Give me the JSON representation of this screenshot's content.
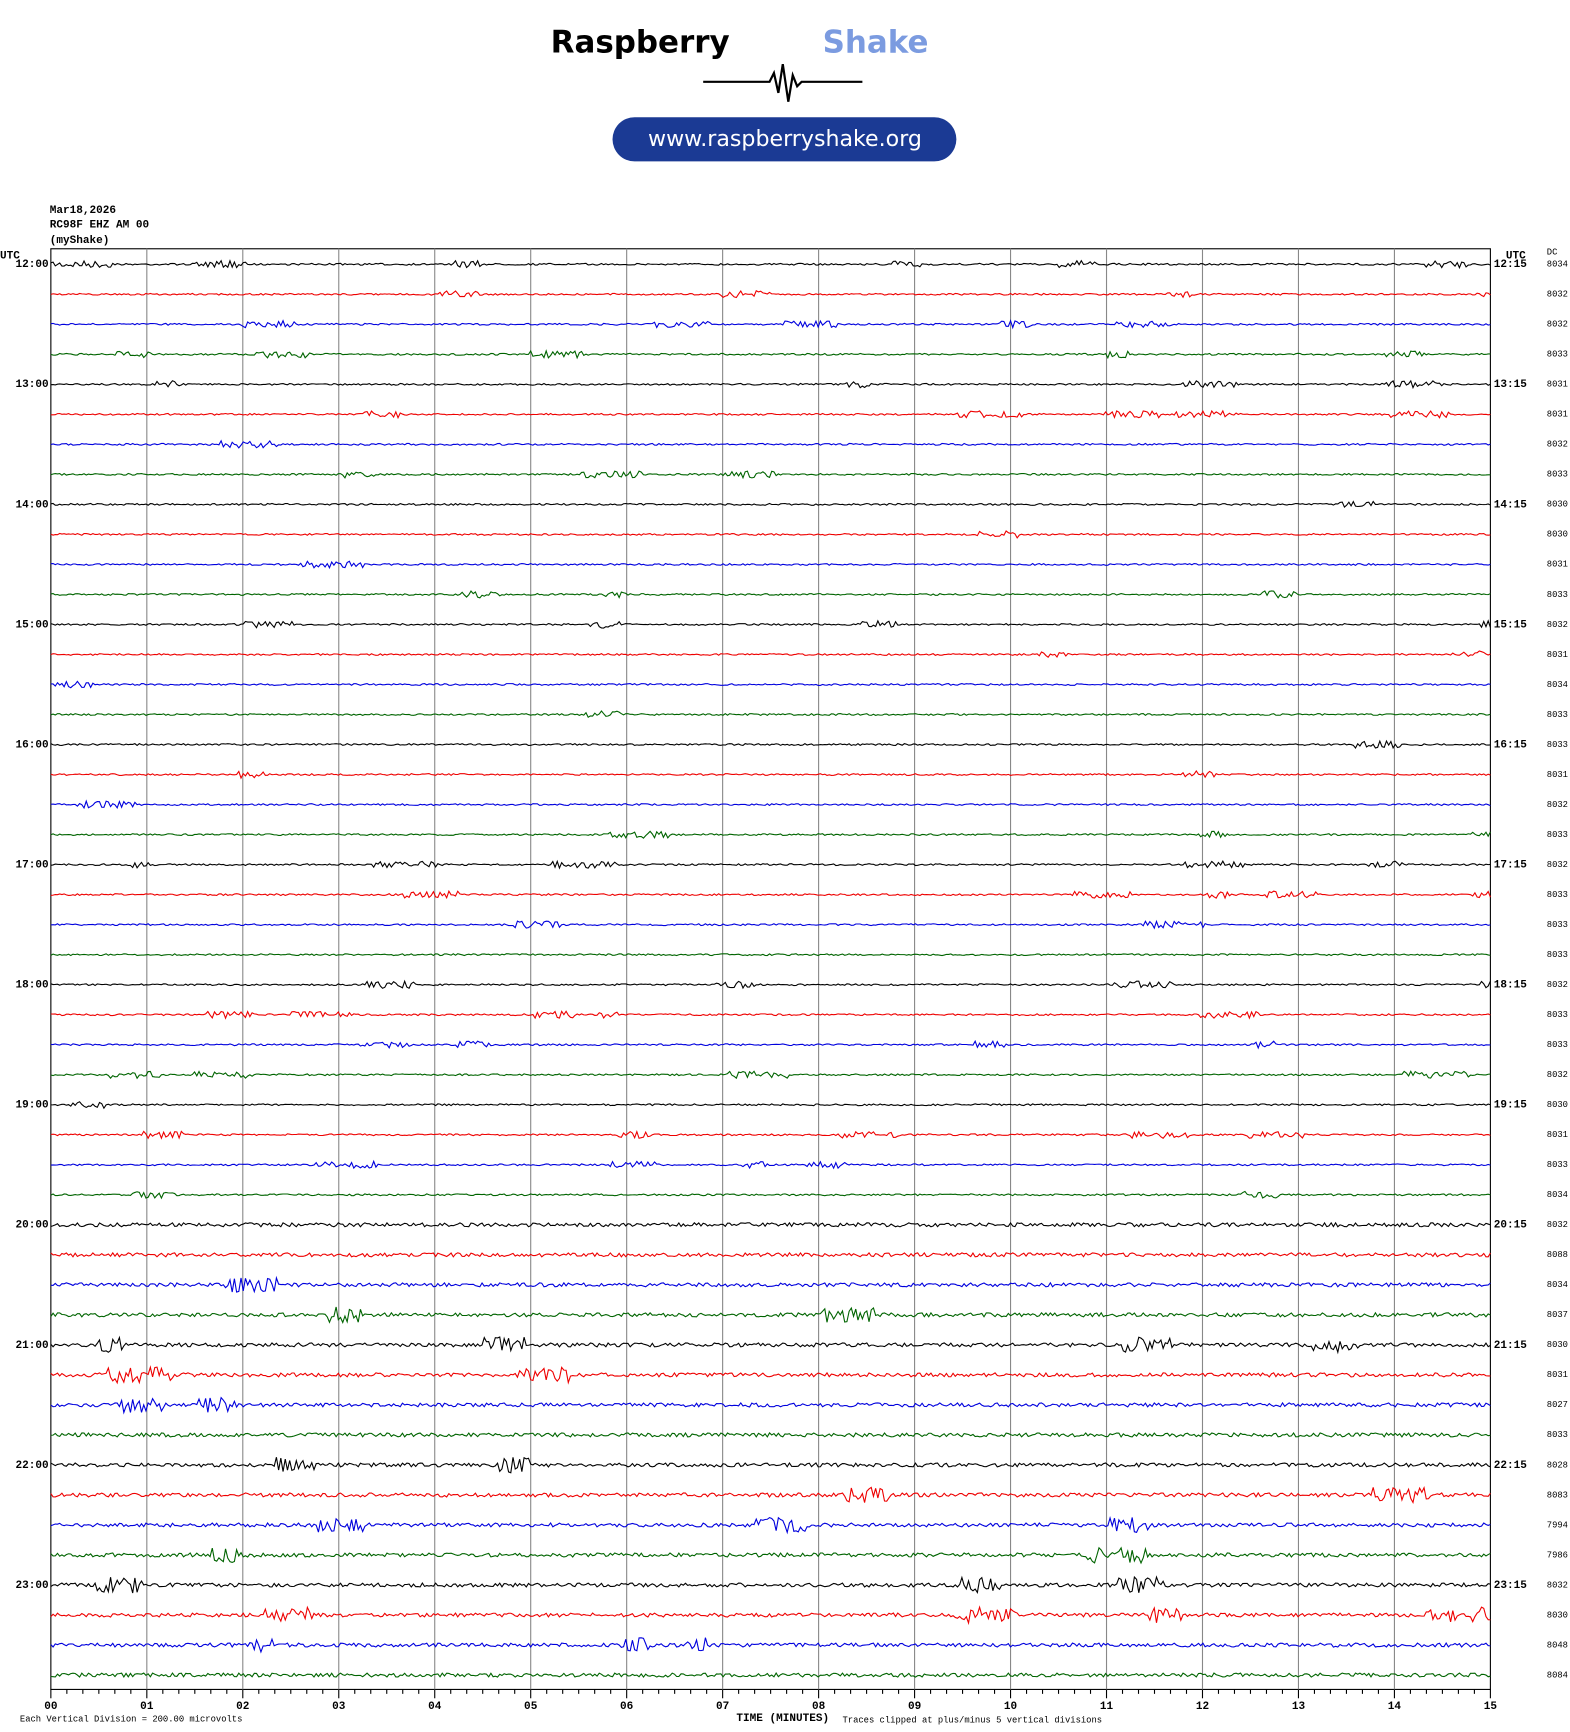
{
  "header": {
    "brand_a": "Raspberry",
    "brand_b": "Shake",
    "url": "www.raspberryshake.org"
  },
  "info": {
    "date": "Mar18,2026",
    "station": "RC98F EHZ AM 00",
    "network": "(myShake)"
  },
  "utc_left": "UTC",
  "utc_right": "UTC",
  "dc_label": "DC",
  "trace_colors": [
    "#000000",
    "#ee0000",
    "#0000dd",
    "#006400"
  ],
  "rows": [
    {
      "left": "12:00",
      "right": "12:15",
      "dc": "8034"
    },
    {
      "dc": "8032"
    },
    {
      "dc": "8032"
    },
    {
      "dc": "8033"
    },
    {
      "left": "13:00",
      "right": "13:15",
      "dc": "8031"
    },
    {
      "dc": "8031"
    },
    {
      "dc": "8032"
    },
    {
      "dc": "8033"
    },
    {
      "left": "14:00",
      "right": "14:15",
      "dc": "8030"
    },
    {
      "dc": "8030"
    },
    {
      "dc": "8031"
    },
    {
      "dc": "8033"
    },
    {
      "left": "15:00",
      "right": "15:15",
      "dc": "8032"
    },
    {
      "dc": "8031"
    },
    {
      "dc": "8034"
    },
    {
      "dc": "8033"
    },
    {
      "left": "16:00",
      "right": "16:15",
      "dc": "8033"
    },
    {
      "dc": "8031"
    },
    {
      "dc": "8032"
    },
    {
      "dc": "8033"
    },
    {
      "left": "17:00",
      "right": "17:15",
      "dc": "8032"
    },
    {
      "dc": "8033"
    },
    {
      "dc": "8033"
    },
    {
      "dc": "8033"
    },
    {
      "left": "18:00",
      "right": "18:15",
      "dc": "8032"
    },
    {
      "dc": "8033"
    },
    {
      "dc": "8033"
    },
    {
      "dc": "8032"
    },
    {
      "left": "19:00",
      "right": "19:15",
      "dc": "8030"
    },
    {
      "dc": "8031"
    },
    {
      "dc": "8033"
    },
    {
      "dc": "8034"
    },
    {
      "left": "20:00",
      "right": "20:15",
      "dc": "8032"
    },
    {
      "dc": "8088"
    },
    {
      "dc": "8034"
    },
    {
      "dc": "8037"
    },
    {
      "left": "21:00",
      "right": "21:15",
      "dc": "8030"
    },
    {
      "dc": "8031"
    },
    {
      "dc": "8027"
    },
    {
      "dc": "8033"
    },
    {
      "left": "22:00",
      "right": "22:15",
      "dc": "8028"
    },
    {
      "dc": "8083"
    },
    {
      "dc": "7994"
    },
    {
      "dc": "7986"
    },
    {
      "left": "23:00",
      "right": "23:15",
      "dc": "8032"
    },
    {
      "dc": "8030"
    },
    {
      "dc": "8048"
    },
    {
      "dc": "8084"
    }
  ],
  "x_labels": [
    "00",
    "01",
    "02",
    "03",
    "04",
    "05",
    "06",
    "07",
    "08",
    "09",
    "10",
    "11",
    "12",
    "13",
    "14",
    "15"
  ],
  "footer": {
    "scale": "Each Vertical Division =  200.00 microvolts",
    "axis": "TIME (MINUTES)",
    "clip": "Traces clipped at plus/minus 5 vertical divisions"
  }
}
